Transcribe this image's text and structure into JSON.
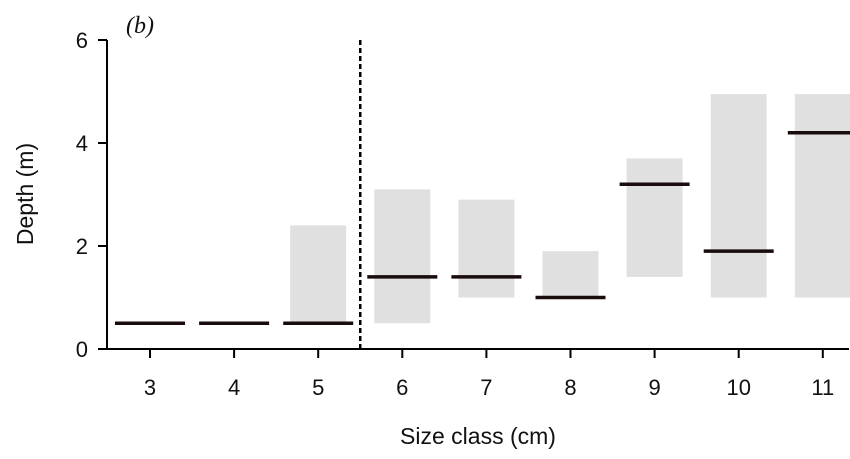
{
  "chart_data": {
    "type": "range-bar",
    "panel_label": "(b)",
    "xlabel": "Size class (cm)",
    "ylabel": "Depth (m)",
    "ylim": [
      0,
      6
    ],
    "yticks": [
      "0",
      "2",
      "4",
      "6"
    ],
    "categories": [
      "3",
      "4",
      "5",
      "6",
      "7",
      "8",
      "9",
      "10",
      "11"
    ],
    "ranges": [
      {
        "min": 0.5,
        "max": 0.5,
        "median": 0.5
      },
      {
        "min": 0.5,
        "max": 0.5,
        "median": 0.5
      },
      {
        "min": 0.5,
        "max": 2.4,
        "median": 0.5
      },
      {
        "min": 0.5,
        "max": 3.1,
        "median": 1.4
      },
      {
        "min": 1.0,
        "max": 2.9,
        "median": 1.4
      },
      {
        "min": 1.0,
        "max": 1.9,
        "median": 1.0
      },
      {
        "min": 1.4,
        "max": 3.7,
        "median": 3.2
      },
      {
        "min": 1.0,
        "max": 4.95,
        "median": 1.9
      },
      {
        "min": 1.0,
        "max": 4.95,
        "median": 4.2
      }
    ],
    "divider_between": [
      "5",
      "6"
    ],
    "colors": {
      "range_fill": "#e0e0e0",
      "median": "#1a0c0c",
      "axis": "#000000"
    }
  }
}
